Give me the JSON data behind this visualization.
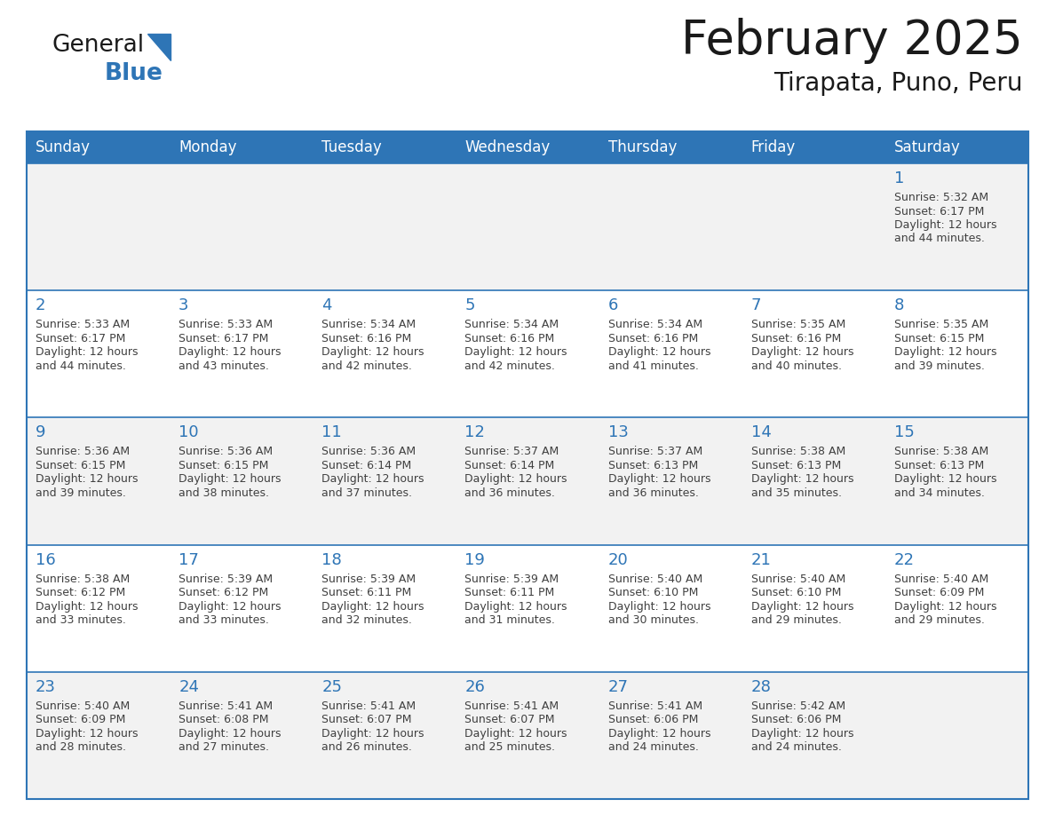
{
  "title": "February 2025",
  "subtitle": "Tirapata, Puno, Peru",
  "header_bg": "#2e75b6",
  "header_text_color": "#ffffff",
  "day_headers": [
    "Sunday",
    "Monday",
    "Tuesday",
    "Wednesday",
    "Thursday",
    "Friday",
    "Saturday"
  ],
  "cell_bg_light": "#f2f2f2",
  "cell_bg_white": "#ffffff",
  "cell_border_color": "#2e75b6",
  "text_color": "#404040",
  "day_num_color": "#2e75b6",
  "logo_color1": "#1a1a1a",
  "logo_color2": "#2e75b6",
  "calendar": [
    [
      null,
      null,
      null,
      null,
      null,
      null,
      1
    ],
    [
      2,
      3,
      4,
      5,
      6,
      7,
      8
    ],
    [
      9,
      10,
      11,
      12,
      13,
      14,
      15
    ],
    [
      16,
      17,
      18,
      19,
      20,
      21,
      22
    ],
    [
      23,
      24,
      25,
      26,
      27,
      28,
      null
    ]
  ],
  "day_data": {
    "1": {
      "sunrise": "5:32 AM",
      "sunset": "6:17 PM",
      "daylight": "12 hours and 44 minutes."
    },
    "2": {
      "sunrise": "5:33 AM",
      "sunset": "6:17 PM",
      "daylight": "12 hours and 44 minutes."
    },
    "3": {
      "sunrise": "5:33 AM",
      "sunset": "6:17 PM",
      "daylight": "12 hours and 43 minutes."
    },
    "4": {
      "sunrise": "5:34 AM",
      "sunset": "6:16 PM",
      "daylight": "12 hours and 42 minutes."
    },
    "5": {
      "sunrise": "5:34 AM",
      "sunset": "6:16 PM",
      "daylight": "12 hours and 42 minutes."
    },
    "6": {
      "sunrise": "5:34 AM",
      "sunset": "6:16 PM",
      "daylight": "12 hours and 41 minutes."
    },
    "7": {
      "sunrise": "5:35 AM",
      "sunset": "6:16 PM",
      "daylight": "12 hours and 40 minutes."
    },
    "8": {
      "sunrise": "5:35 AM",
      "sunset": "6:15 PM",
      "daylight": "12 hours and 39 minutes."
    },
    "9": {
      "sunrise": "5:36 AM",
      "sunset": "6:15 PM",
      "daylight": "12 hours and 39 minutes."
    },
    "10": {
      "sunrise": "5:36 AM",
      "sunset": "6:15 PM",
      "daylight": "12 hours and 38 minutes."
    },
    "11": {
      "sunrise": "5:36 AM",
      "sunset": "6:14 PM",
      "daylight": "12 hours and 37 minutes."
    },
    "12": {
      "sunrise": "5:37 AM",
      "sunset": "6:14 PM",
      "daylight": "12 hours and 36 minutes."
    },
    "13": {
      "sunrise": "5:37 AM",
      "sunset": "6:13 PM",
      "daylight": "12 hours and 36 minutes."
    },
    "14": {
      "sunrise": "5:38 AM",
      "sunset": "6:13 PM",
      "daylight": "12 hours and 35 minutes."
    },
    "15": {
      "sunrise": "5:38 AM",
      "sunset": "6:13 PM",
      "daylight": "12 hours and 34 minutes."
    },
    "16": {
      "sunrise": "5:38 AM",
      "sunset": "6:12 PM",
      "daylight": "12 hours and 33 minutes."
    },
    "17": {
      "sunrise": "5:39 AM",
      "sunset": "6:12 PM",
      "daylight": "12 hours and 33 minutes."
    },
    "18": {
      "sunrise": "5:39 AM",
      "sunset": "6:11 PM",
      "daylight": "12 hours and 32 minutes."
    },
    "19": {
      "sunrise": "5:39 AM",
      "sunset": "6:11 PM",
      "daylight": "12 hours and 31 minutes."
    },
    "20": {
      "sunrise": "5:40 AM",
      "sunset": "6:10 PM",
      "daylight": "12 hours and 30 minutes."
    },
    "21": {
      "sunrise": "5:40 AM",
      "sunset": "6:10 PM",
      "daylight": "12 hours and 29 minutes."
    },
    "22": {
      "sunrise": "5:40 AM",
      "sunset": "6:09 PM",
      "daylight": "12 hours and 29 minutes."
    },
    "23": {
      "sunrise": "5:40 AM",
      "sunset": "6:09 PM",
      "daylight": "12 hours and 28 minutes."
    },
    "24": {
      "sunrise": "5:41 AM",
      "sunset": "6:08 PM",
      "daylight": "12 hours and 27 minutes."
    },
    "25": {
      "sunrise": "5:41 AM",
      "sunset": "6:07 PM",
      "daylight": "12 hours and 26 minutes."
    },
    "26": {
      "sunrise": "5:41 AM",
      "sunset": "6:07 PM",
      "daylight": "12 hours and 25 minutes."
    },
    "27": {
      "sunrise": "5:41 AM",
      "sunset": "6:06 PM",
      "daylight": "12 hours and 24 minutes."
    },
    "28": {
      "sunrise": "5:42 AM",
      "sunset": "6:06 PM",
      "daylight": "12 hours and 24 minutes."
    }
  }
}
